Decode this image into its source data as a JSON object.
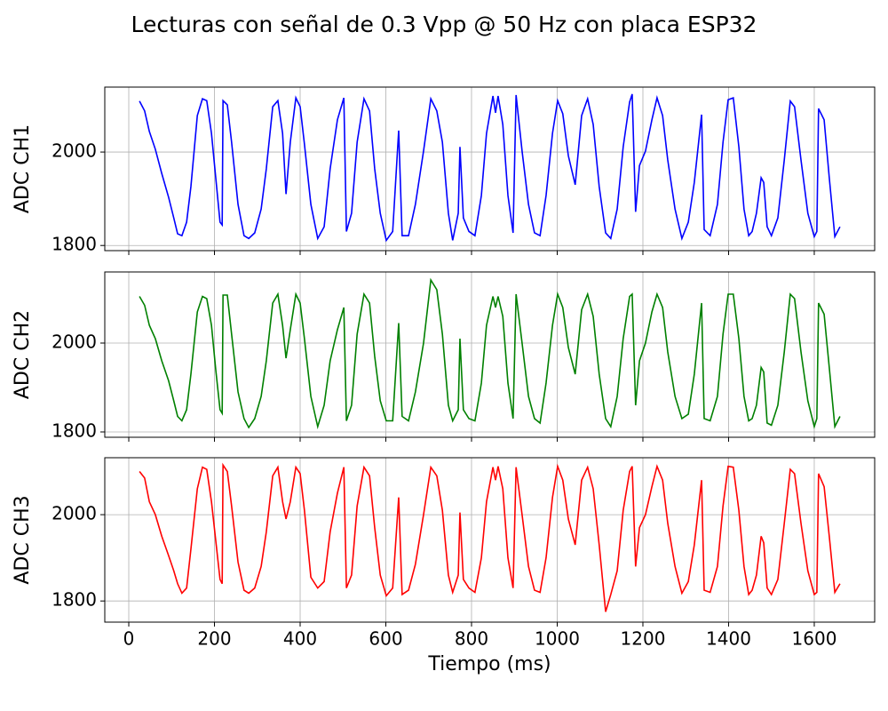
{
  "title": "Lecturas con señal de 0.3 Vpp @ 50 Hz con placa ESP32",
  "chart_data": [
    {
      "type": "line",
      "ylabel": "ADC CH1",
      "color": "#0000ff",
      "grid": true,
      "xlim": [
        -56,
        1741
      ],
      "xticks": [
        0,
        200,
        400,
        600,
        800,
        1000,
        1200,
        1400,
        1600
      ],
      "ylim": [
        1789,
        2139
      ],
      "yticks": [
        1800,
        2000
      ],
      "x": [
        25,
        37,
        48,
        62,
        77,
        93,
        105,
        114,
        124,
        135,
        145,
        160,
        172,
        182,
        193,
        203,
        213,
        218,
        220,
        230,
        240,
        255,
        269,
        280,
        294,
        309,
        321,
        336,
        348,
        359,
        367,
        377,
        390,
        400,
        410,
        425,
        441,
        456,
        470,
        487,
        502,
        508,
        520,
        533,
        549,
        562,
        574,
        587,
        601,
        616,
        630,
        638,
        653,
        669,
        688,
        705,
        719,
        732,
        746,
        756,
        769,
        773,
        781,
        794,
        808,
        823,
        835,
        850,
        856,
        862,
        873,
        885,
        897,
        904,
        918,
        933,
        947,
        960,
        974,
        989,
        1001,
        1013,
        1026,
        1042,
        1057,
        1071,
        1084,
        1098,
        1113,
        1125,
        1140,
        1154,
        1169,
        1175,
        1183,
        1192,
        1206,
        1221,
        1233,
        1246,
        1258,
        1275,
        1291,
        1306,
        1320,
        1337,
        1343,
        1357,
        1374,
        1387,
        1399,
        1411,
        1424,
        1436,
        1447,
        1455,
        1465,
        1476,
        1482,
        1490,
        1500,
        1515,
        1530,
        1544,
        1554,
        1569,
        1585,
        1600,
        1606,
        1610,
        1623,
        1635,
        1648,
        1660
      ],
      "values": [
        2109,
        2088,
        2044,
        2006,
        1954,
        1903,
        1859,
        1825,
        1821,
        1850,
        1926,
        2078,
        2114,
        2110,
        2040,
        1945,
        1850,
        1844,
        2110,
        2101,
        2021,
        1888,
        1821,
        1815,
        1827,
        1878,
        1964,
        2097,
        2110,
        2040,
        1910,
        2021,
        2116,
        2097,
        2017,
        1888,
        1815,
        1840,
        1964,
        2069,
        2116,
        1830,
        1869,
        2021,
        2114,
        2088,
        1964,
        1869,
        1811,
        1830,
        2046,
        1821,
        1821,
        1888,
        2002,
        2114,
        2088,
        2021,
        1869,
        1811,
        1869,
        2011,
        1859,
        1830,
        1821,
        1907,
        2040,
        2120,
        2084,
        2120,
        2059,
        1907,
        1827,
        2122,
        2002,
        1888,
        1827,
        1821,
        1907,
        2040,
        2110,
        2082,
        1992,
        1930,
        2078,
        2114,
        2059,
        1926,
        1827,
        1815,
        1878,
        2011,
        2107,
        2124,
        1872,
        1971,
        2002,
        2069,
        2116,
        2078,
        1983,
        1878,
        1815,
        1850,
        1935,
        2080,
        1834,
        1821,
        1888,
        2021,
        2112,
        2116,
        2011,
        1878,
        1821,
        1830,
        1869,
        1945,
        1935,
        1840,
        1821,
        1859,
        1983,
        2109,
        2097,
        1983,
        1869,
        1819,
        1830,
        2093,
        2069,
        1945,
        1819,
        1840
      ]
    },
    {
      "type": "line",
      "ylabel": "ADC CH2",
      "color": "#008000",
      "grid": true,
      "xlim": [
        -56,
        1741
      ],
      "xticks": [
        0,
        200,
        400,
        600,
        800,
        1000,
        1200,
        1400,
        1600
      ],
      "ylim": [
        1788,
        2160
      ],
      "yticks": [
        1800,
        2000
      ],
      "x": [
        25,
        37,
        48,
        62,
        77,
        93,
        105,
        114,
        124,
        135,
        145,
        160,
        172,
        182,
        193,
        203,
        213,
        218,
        220,
        230,
        240,
        255,
        269,
        280,
        294,
        309,
        321,
        336,
        348,
        359,
        367,
        377,
        390,
        400,
        410,
        425,
        441,
        456,
        470,
        487,
        502,
        508,
        520,
        533,
        549,
        562,
        574,
        587,
        601,
        616,
        630,
        638,
        653,
        669,
        688,
        705,
        719,
        732,
        746,
        756,
        769,
        773,
        781,
        794,
        808,
        823,
        835,
        850,
        856,
        862,
        873,
        885,
        897,
        904,
        918,
        933,
        947,
        960,
        974,
        989,
        1001,
        1013,
        1026,
        1042,
        1057,
        1071,
        1084,
        1098,
        1113,
        1125,
        1140,
        1154,
        1169,
        1175,
        1183,
        1192,
        1206,
        1221,
        1233,
        1246,
        1258,
        1275,
        1291,
        1306,
        1320,
        1337,
        1343,
        1357,
        1374,
        1387,
        1399,
        1411,
        1424,
        1436,
        1447,
        1455,
        1465,
        1476,
        1482,
        1490,
        1500,
        1515,
        1530,
        1544,
        1554,
        1569,
        1585,
        1600,
        1606,
        1610,
        1623,
        1635,
        1648,
        1660
      ],
      "values": [
        2105,
        2085,
        2040,
        2010,
        1960,
        1915,
        1870,
        1835,
        1825,
        1850,
        1930,
        2070,
        2105,
        2100,
        2040,
        1940,
        1850,
        1842,
        2108,
        2108,
        2020,
        1890,
        1830,
        1810,
        1830,
        1880,
        1960,
        2090,
        2110,
        2040,
        1966,
        2030,
        2110,
        2090,
        2010,
        1880,
        1812,
        1860,
        1960,
        2030,
        2080,
        1825,
        1860,
        2020,
        2110,
        2090,
        1970,
        1870,
        1825,
        1825,
        2045,
        1835,
        1825,
        1890,
        2000,
        2142,
        2120,
        2020,
        1860,
        1825,
        1850,
        2010,
        1850,
        1830,
        1825,
        1910,
        2040,
        2105,
        2080,
        2105,
        2060,
        1910,
        1830,
        2110,
        2000,
        1880,
        1830,
        1820,
        1910,
        2040,
        2110,
        2080,
        1990,
        1930,
        2075,
        2110,
        2060,
        1930,
        1830,
        1812,
        1880,
        2010,
        2105,
        2110,
        1860,
        1960,
        2000,
        2070,
        2110,
        2080,
        1980,
        1880,
        1830,
        1840,
        1930,
        2090,
        1830,
        1825,
        1880,
        2020,
        2110,
        2110,
        2010,
        1880,
        1825,
        1830,
        1860,
        1945,
        1935,
        1820,
        1815,
        1860,
        1980,
        2110,
        2100,
        1980,
        1870,
        1812,
        1830,
        2090,
        2065,
        1945,
        1812,
        1835
      ]
    },
    {
      "type": "line",
      "ylabel": "ADC CH3",
      "xlabel": "Tiempo (ms)",
      "color": "#ff0000",
      "grid": true,
      "xlim": [
        -56,
        1741
      ],
      "xticks": [
        0,
        200,
        400,
        600,
        800,
        1000,
        1200,
        1400,
        1600
      ],
      "ylim": [
        1751,
        2132
      ],
      "yticks": [
        1800,
        2000
      ],
      "x": [
        25,
        37,
        48,
        62,
        77,
        93,
        105,
        114,
        124,
        135,
        145,
        160,
        172,
        182,
        193,
        203,
        213,
        218,
        220,
        230,
        240,
        255,
        269,
        280,
        294,
        309,
        321,
        336,
        348,
        359,
        367,
        377,
        390,
        400,
        410,
        425,
        441,
        456,
        470,
        487,
        502,
        508,
        520,
        533,
        549,
        562,
        574,
        587,
        601,
        616,
        630,
        638,
        653,
        669,
        688,
        705,
        719,
        732,
        746,
        756,
        769,
        773,
        781,
        794,
        808,
        823,
        835,
        850,
        856,
        862,
        873,
        885,
        897,
        904,
        918,
        933,
        947,
        960,
        974,
        989,
        1001,
        1013,
        1026,
        1042,
        1057,
        1071,
        1084,
        1098,
        1113,
        1125,
        1140,
        1154,
        1169,
        1175,
        1183,
        1192,
        1206,
        1221,
        1233,
        1246,
        1258,
        1275,
        1291,
        1306,
        1320,
        1337,
        1343,
        1357,
        1374,
        1387,
        1399,
        1411,
        1424,
        1436,
        1447,
        1455,
        1465,
        1476,
        1482,
        1490,
        1500,
        1515,
        1530,
        1544,
        1554,
        1569,
        1585,
        1600,
        1606,
        1610,
        1623,
        1635,
        1648,
        1660
      ],
      "values": [
        2100,
        2085,
        2030,
        2000,
        1950,
        1905,
        1870,
        1840,
        1818,
        1830,
        1920,
        2060,
        2110,
        2105,
        2030,
        1940,
        1850,
        1840,
        2115,
        2100,
        2020,
        1890,
        1825,
        1818,
        1830,
        1880,
        1960,
        2090,
        2110,
        2030,
        1990,
        2030,
        2110,
        2095,
        2010,
        1855,
        1830,
        1845,
        1960,
        2050,
        2110,
        1830,
        1860,
        2020,
        2110,
        2090,
        1970,
        1860,
        1812,
        1830,
        2040,
        1815,
        1825,
        1885,
        2000,
        2110,
        2090,
        2010,
        1860,
        1820,
        1860,
        2005,
        1850,
        1830,
        1820,
        1900,
        2030,
        2110,
        2080,
        2112,
        2060,
        1900,
        1830,
        2110,
        2000,
        1880,
        1825,
        1820,
        1900,
        2040,
        2112,
        2080,
        1990,
        1930,
        2080,
        2110,
        2060,
        1930,
        1775,
        1815,
        1870,
        2010,
        2100,
        2112,
        1880,
        1970,
        2000,
        2065,
        2112,
        2080,
        1980,
        1880,
        1818,
        1845,
        1930,
        2080,
        1825,
        1820,
        1880,
        2020,
        2112,
        2110,
        2010,
        1880,
        1815,
        1825,
        1860,
        1950,
        1935,
        1830,
        1815,
        1850,
        1980,
        2105,
        2095,
        1980,
        1870,
        1815,
        1820,
        2095,
        2065,
        1950,
        1820,
        1840
      ]
    }
  ]
}
